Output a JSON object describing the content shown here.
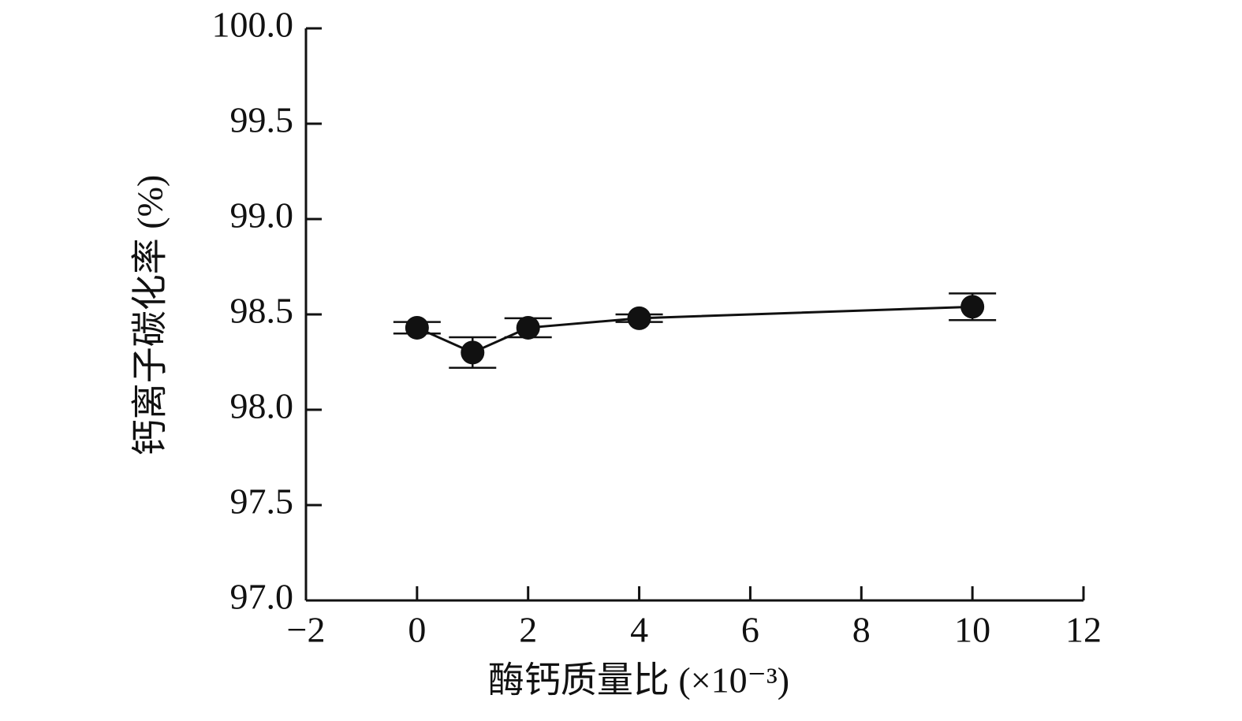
{
  "chart_data": {
    "type": "line",
    "xlabel": "酶钙质量比 (×10⁻³)",
    "ylabel": "钙离子碳化率 (%)",
    "x": [
      0,
      1,
      2,
      4,
      10
    ],
    "values": [
      98.43,
      98.3,
      98.43,
      98.48,
      98.54
    ],
    "errors": [
      0.03,
      0.08,
      0.05,
      0.02,
      0.07
    ],
    "color": "#111111",
    "xlim": [
      -2,
      12
    ],
    "xticks": [
      {
        "value": -2,
        "label": "−2"
      },
      0,
      2,
      4,
      6,
      8,
      10,
      12
    ],
    "ylim": [
      97,
      100
    ],
    "yticks": [
      {
        "value": 97,
        "label": "97.0"
      },
      {
        "value": 97.5,
        "label": "97.5"
      },
      {
        "value": 98,
        "label": "98.0"
      },
      {
        "value": 98.5,
        "label": "98.5"
      },
      {
        "value": 99,
        "label": "99.0"
      },
      {
        "value": 99.5,
        "label": "99.5"
      },
      {
        "value": 100,
        "label": "100.0"
      }
    ],
    "grid": false
  }
}
